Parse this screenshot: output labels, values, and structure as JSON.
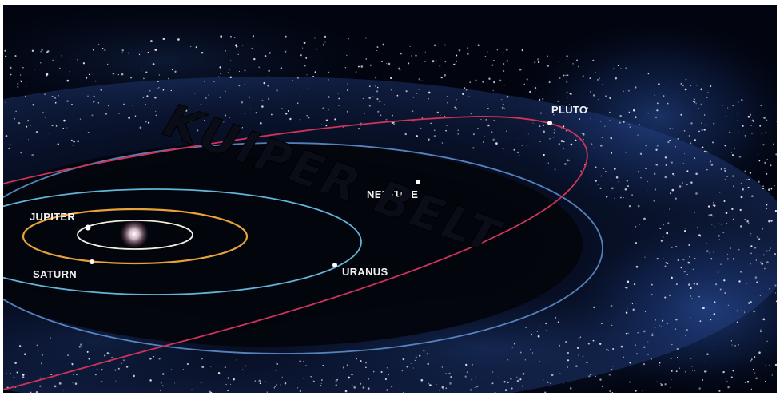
{
  "diagram": {
    "title": "KUIPER BELT",
    "planets": [
      {
        "id": "jupiter",
        "label": "JUPITER",
        "orbit_color": "#f0eee0"
      },
      {
        "id": "saturn",
        "label": "SATURN",
        "orbit_color": "#e9a13a"
      },
      {
        "id": "uranus",
        "label": "URANUS",
        "orbit_color": "#63b4d8"
      },
      {
        "id": "neptune",
        "label": "NEPTUNE",
        "orbit_color": "#5e8fce"
      },
      {
        "id": "pluto",
        "label": "PLUTO",
        "orbit_color": "#d0335a"
      }
    ],
    "colors": {
      "space": "#020510",
      "belt_particles": "#e8ecf6",
      "nebula": "#1d3f88",
      "sun": "#e6d2dc"
    }
  }
}
